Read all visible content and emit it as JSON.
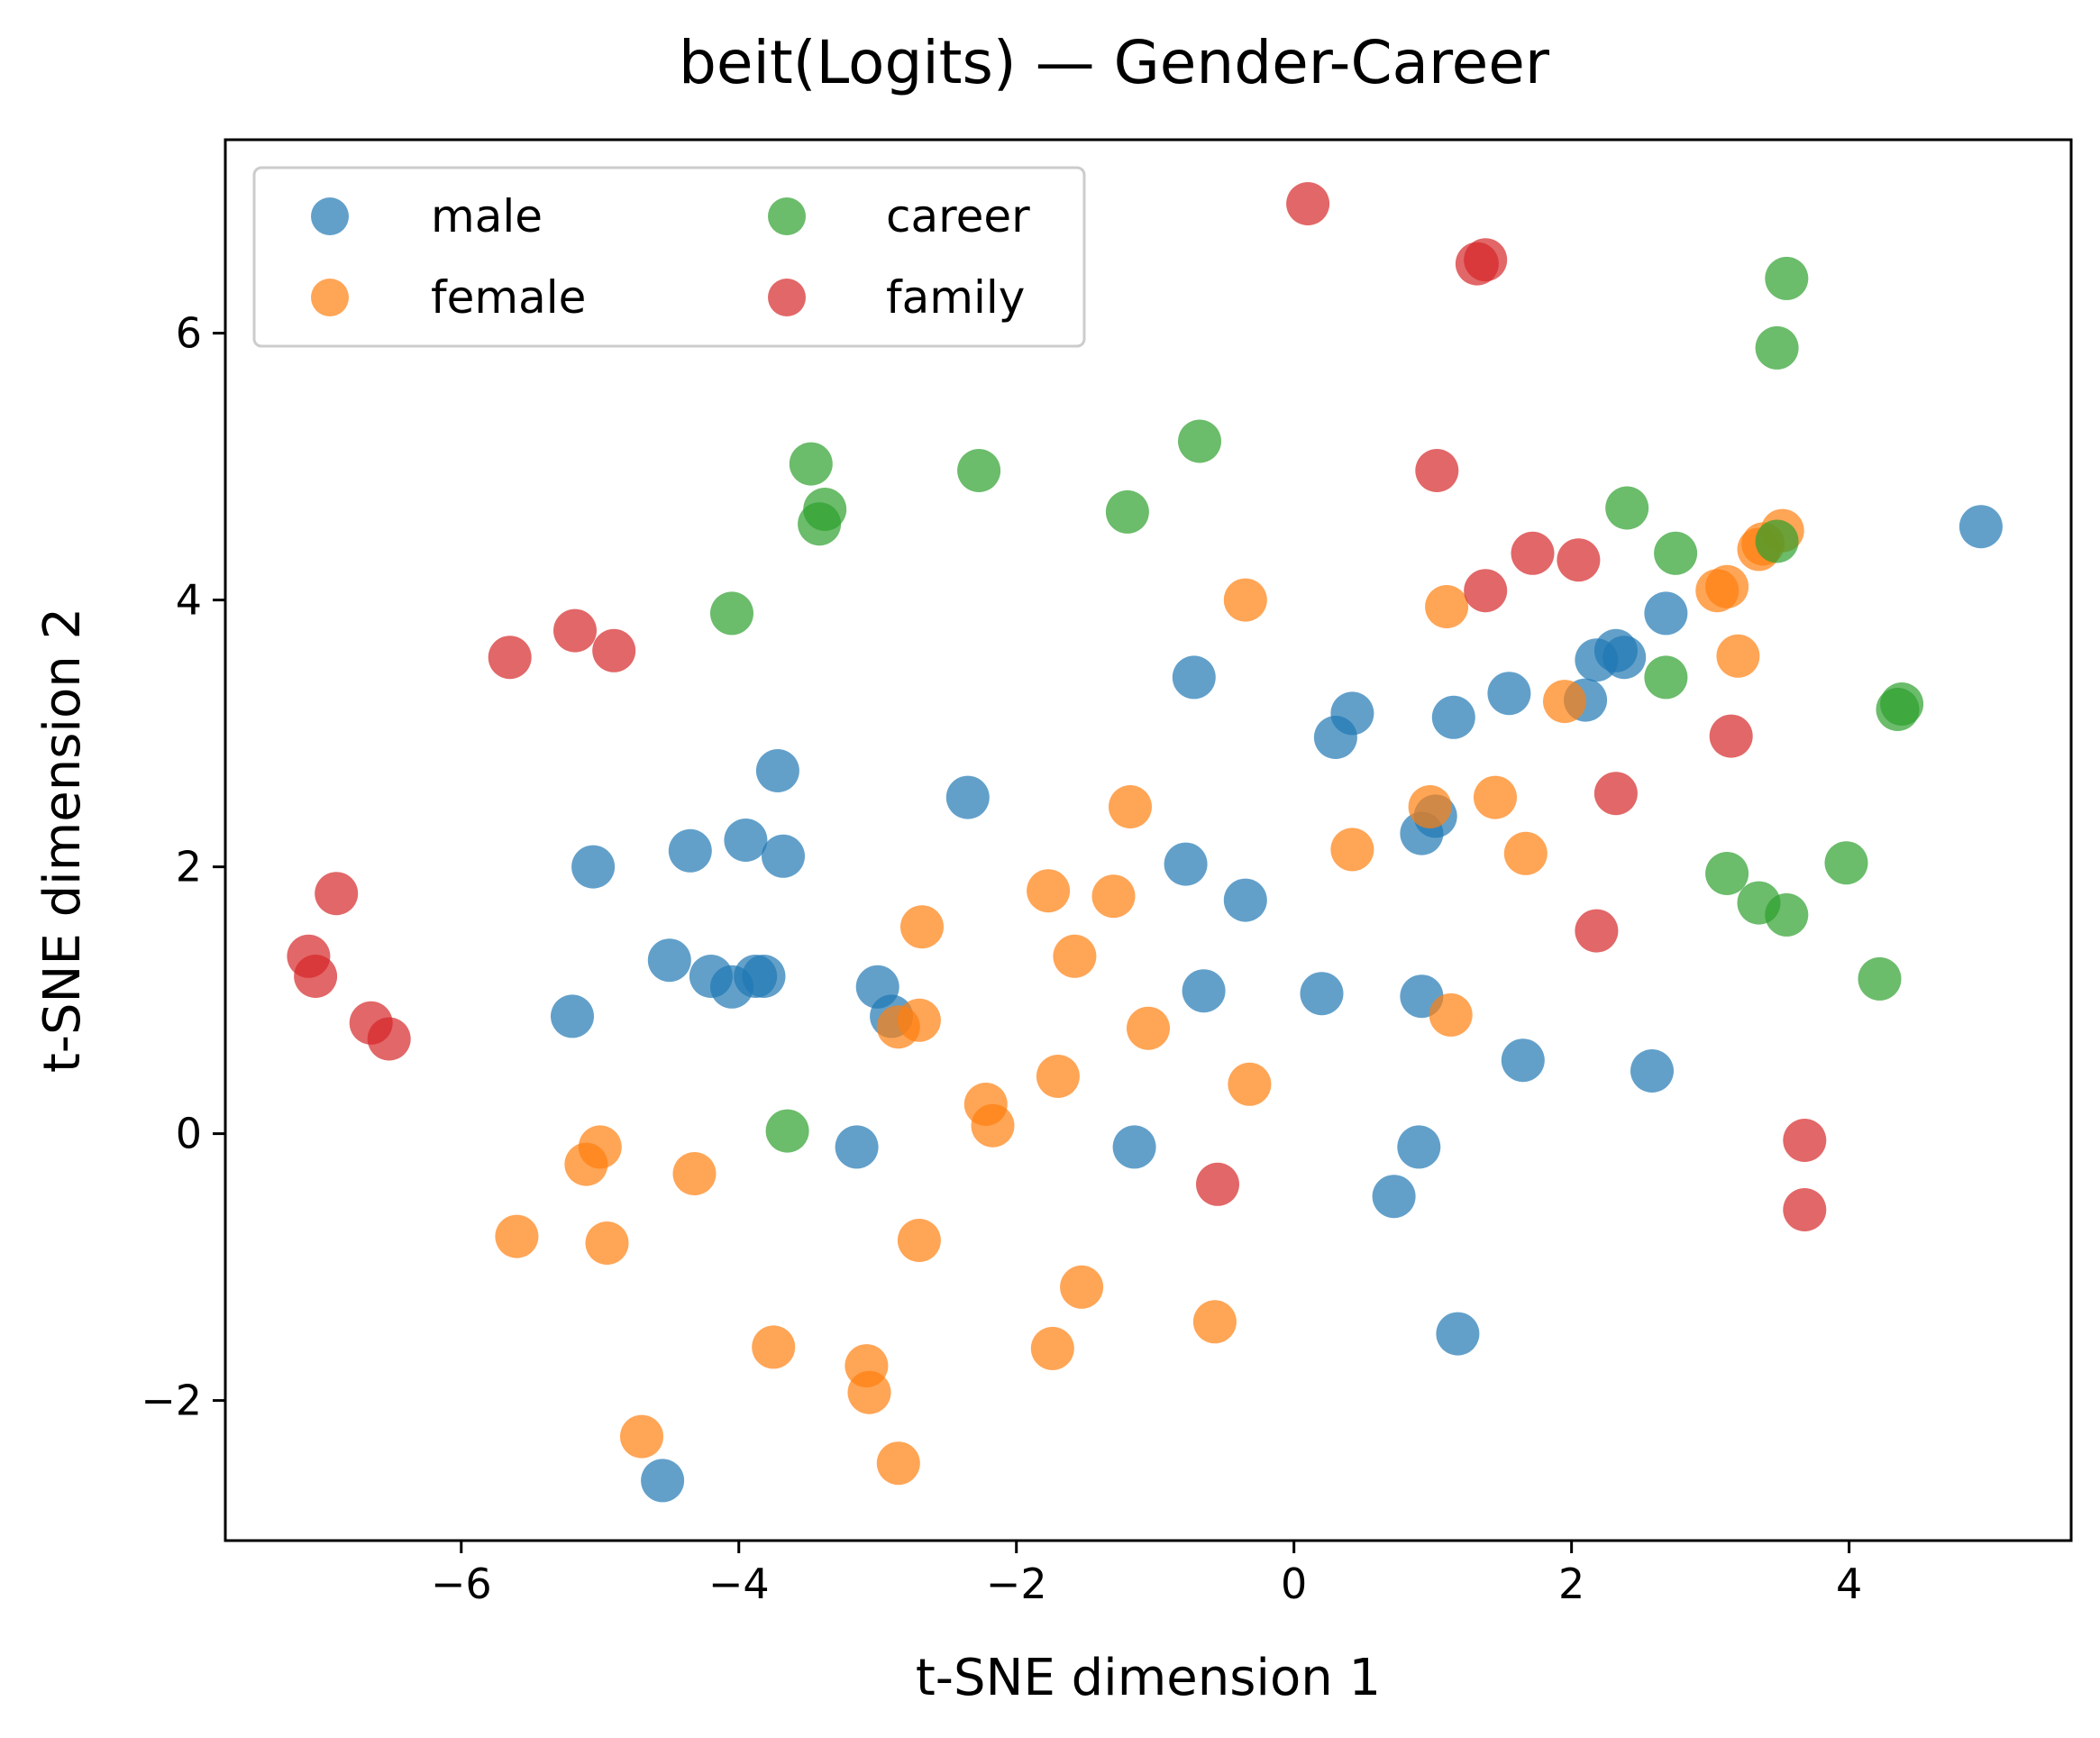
{
  "chart_data": {
    "type": "scatter",
    "title": "beit(Logits) — Gender-Career",
    "xlabel": "t-SNE dimension 1",
    "ylabel": "t-SNE dimension 2",
    "xlim": [
      -7.7,
      5.6
    ],
    "ylim": [
      -3.05,
      7.45
    ],
    "xticks": [
      -6,
      -4,
      -2,
      0,
      2,
      4
    ],
    "yticks": [
      -2,
      0,
      2,
      4,
      6
    ],
    "xtick_labels": [
      "−6",
      "−4",
      "−2",
      "0",
      "2",
      "4"
    ],
    "ytick_labels": [
      "−2",
      "0",
      "2",
      "4",
      "6"
    ],
    "grid": false,
    "legend_placement": "top-left",
    "series": [
      {
        "name": "male",
        "color": "#1f77b4",
        "points": [
          [
            -4.55,
            -2.6
          ],
          [
            -5.2,
            0.88
          ],
          [
            -5.05,
            2.0
          ],
          [
            -4.5,
            1.3
          ],
          [
            -4.35,
            2.12
          ],
          [
            -4.2,
            1.18
          ],
          [
            -4.05,
            1.1
          ],
          [
            -3.95,
            2.2
          ],
          [
            -3.88,
            1.18
          ],
          [
            -3.82,
            1.18
          ],
          [
            -3.72,
            2.72
          ],
          [
            -3.68,
            2.08
          ],
          [
            -3.15,
            -0.1
          ],
          [
            -3.0,
            1.1
          ],
          [
            -2.9,
            0.88
          ],
          [
            -2.35,
            2.52
          ],
          [
            -1.15,
            -0.1
          ],
          [
            -0.78,
            2.02
          ],
          [
            -0.72,
            3.42
          ],
          [
            -0.65,
            1.07
          ],
          [
            -0.35,
            1.75
          ],
          [
            0.2,
            1.05
          ],
          [
            0.3,
            2.97
          ],
          [
            0.42,
            3.15
          ],
          [
            0.72,
            -0.47
          ],
          [
            0.9,
            -0.1
          ],
          [
            0.92,
            1.03
          ],
          [
            0.92,
            2.25
          ],
          [
            1.02,
            2.38
          ],
          [
            1.15,
            3.12
          ],
          [
            1.18,
            -1.5
          ],
          [
            1.55,
            3.3
          ],
          [
            1.65,
            0.55
          ],
          [
            2.1,
            3.25
          ],
          [
            2.18,
            3.55
          ],
          [
            2.32,
            3.62
          ],
          [
            2.38,
            3.57
          ],
          [
            2.58,
            0.47
          ],
          [
            2.68,
            3.9
          ],
          [
            4.95,
            4.55
          ]
        ]
      },
      {
        "name": "female",
        "color": "#ff7f0e",
        "points": [
          [
            -5.6,
            -0.77
          ],
          [
            -5.1,
            -0.23
          ],
          [
            -5.0,
            -0.1
          ],
          [
            -4.95,
            -0.82
          ],
          [
            -4.7,
            -2.27
          ],
          [
            -4.32,
            -0.3
          ],
          [
            -3.75,
            -1.6
          ],
          [
            -3.08,
            -1.74
          ],
          [
            -3.06,
            -1.94
          ],
          [
            -2.85,
            -2.47
          ],
          [
            -2.85,
            0.8
          ],
          [
            -2.7,
            0.85
          ],
          [
            -2.7,
            -0.8
          ],
          [
            -2.68,
            1.55
          ],
          [
            -2.22,
            0.22
          ],
          [
            -2.17,
            0.06
          ],
          [
            -1.77,
            1.82
          ],
          [
            -1.7,
            0.43
          ],
          [
            -1.74,
            -1.61
          ],
          [
            -1.58,
            1.33
          ],
          [
            -1.53,
            -1.15
          ],
          [
            -1.3,
            1.78
          ],
          [
            -1.18,
            2.45
          ],
          [
            -1.05,
            0.79
          ],
          [
            -0.57,
            -1.41
          ],
          [
            -0.32,
            0.37
          ],
          [
            -0.35,
            4.0
          ],
          [
            0.42,
            2.13
          ],
          [
            0.98,
            2.45
          ],
          [
            1.1,
            3.95
          ],
          [
            1.13,
            0.89
          ],
          [
            1.45,
            2.52
          ],
          [
            1.67,
            2.1
          ],
          [
            1.95,
            3.24
          ],
          [
            3.05,
            4.07
          ],
          [
            3.12,
            4.1
          ],
          [
            3.2,
            3.58
          ],
          [
            3.35,
            4.38
          ],
          [
            3.38,
            4.42
          ],
          [
            3.52,
            4.52
          ]
        ]
      },
      {
        "name": "career",
        "color": "#2ca02c",
        "points": [
          [
            -3.65,
            0.02
          ],
          [
            -4.05,
            3.9
          ],
          [
            -3.42,
            4.57
          ],
          [
            -3.38,
            4.68
          ],
          [
            -3.48,
            5.02
          ],
          [
            -2.27,
            4.97
          ],
          [
            -1.2,
            4.66
          ],
          [
            -0.68,
            5.19
          ],
          [
            2.4,
            4.69
          ],
          [
            2.68,
            3.42
          ],
          [
            2.75,
            4.35
          ],
          [
            3.12,
            1.95
          ],
          [
            3.35,
            1.73
          ],
          [
            3.48,
            5.89
          ],
          [
            3.48,
            4.44
          ],
          [
            3.55,
            1.64
          ],
          [
            3.55,
            6.41
          ],
          [
            3.98,
            2.03
          ],
          [
            4.22,
            1.16
          ],
          [
            4.35,
            3.18
          ],
          [
            4.38,
            3.22
          ]
        ]
      },
      {
        "name": "family",
        "color": "#d62728",
        "points": [
          [
            -7.1,
            1.33
          ],
          [
            -7.05,
            1.18
          ],
          [
            -6.9,
            1.8
          ],
          [
            -6.65,
            0.83
          ],
          [
            -6.52,
            0.71
          ],
          [
            -5.65,
            3.57
          ],
          [
            -5.18,
            3.77
          ],
          [
            -4.9,
            3.62
          ],
          [
            -0.55,
            -0.38
          ],
          [
            0.1,
            6.97
          ],
          [
            1.03,
            4.97
          ],
          [
            1.32,
            6.52
          ],
          [
            1.38,
            6.55
          ],
          [
            1.38,
            4.07
          ],
          [
            1.72,
            4.35
          ],
          [
            2.05,
            4.3
          ],
          [
            2.18,
            1.52
          ],
          [
            2.32,
            2.55
          ],
          [
            3.15,
            2.98
          ],
          [
            3.68,
            -0.05
          ],
          [
            3.68,
            -0.57
          ]
        ]
      }
    ]
  }
}
